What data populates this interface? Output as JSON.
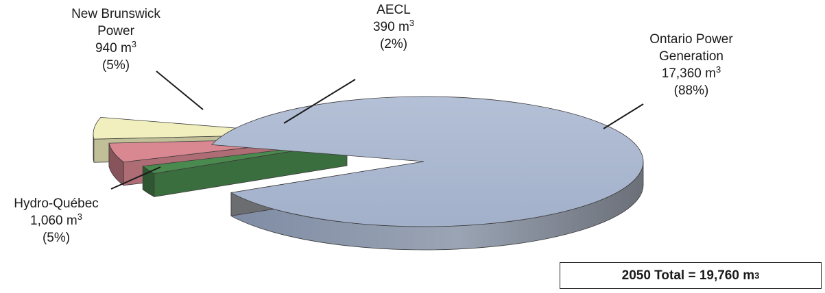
{
  "chart_data": {
    "type": "pie",
    "style": "3d-exploded",
    "unit": "m",
    "unit_superscript": "3",
    "slices": [
      {
        "name": "Ontario Power Generation",
        "label_lines": [
          "Ontario Power",
          "Generation"
        ],
        "value": 17360,
        "value_text": "17,360",
        "percent_text": "(88%)",
        "color": "#a8b6cf"
      },
      {
        "name": "AECL",
        "label_lines": [
          "AECL"
        ],
        "value": 390,
        "value_text": "390",
        "percent_text": "(2%)",
        "color": "#4a8a4e"
      },
      {
        "name": "New Brunswick Power",
        "label_lines": [
          "New Brunswick",
          "Power"
        ],
        "value": 940,
        "value_text": "940",
        "percent_text": "(5%)",
        "color": "#d98892"
      },
      {
        "name": "Hydro-Québec",
        "label_lines": [
          "Hydro-Québec"
        ],
        "value": 1060,
        "value_text": "1,060",
        "percent_text": "(5%)",
        "color": "#f0efbd"
      }
    ],
    "total": {
      "value": 19760,
      "prefix": "2050 Total = 19,760 m",
      "superscript": "3"
    }
  }
}
